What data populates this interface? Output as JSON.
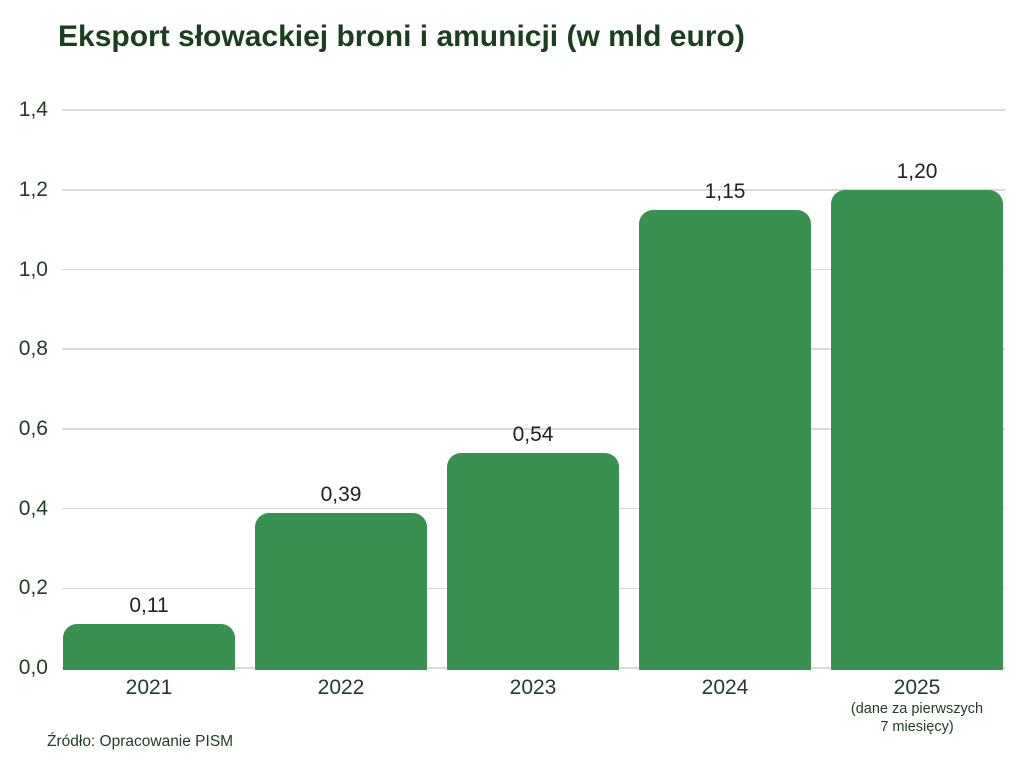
{
  "title": "Eksport słowackiej broni i amunicji (w mld euro)",
  "source": "Źródło: Opracowanie PISM",
  "colors": {
    "bar": "#38914f",
    "title_text": "#1a3e1e",
    "axis_text": "#1f3d23",
    "value_label_text": "#202420",
    "gridline": "#d9d9d9",
    "background": "#ffffff"
  },
  "chart_data": {
    "type": "bar",
    "title": "Eksport słowackiej broni i amunicji (w mld euro)",
    "categories": [
      "2021",
      "2022",
      "2023",
      "2024",
      "2025"
    ],
    "category_notes": [
      "",
      "",
      "",
      "",
      "(dane za pierwszych\n7 miesięcy)"
    ],
    "values": [
      0.11,
      0.39,
      0.54,
      1.15,
      1.2
    ],
    "value_labels": [
      "0,11",
      "0,39",
      "0,54",
      "1,15",
      "1,20"
    ],
    "xlabel": "",
    "ylabel": "",
    "ylim": [
      0,
      1.4
    ],
    "ytick_step": 0.2,
    "ytick_labels": [
      "0,0",
      "0,2",
      "0,4",
      "0,6",
      "0,8",
      "1,0",
      "1,2",
      "1,4"
    ],
    "grid": true,
    "legend": false,
    "source": "Źródło: Opracowanie PISM"
  }
}
